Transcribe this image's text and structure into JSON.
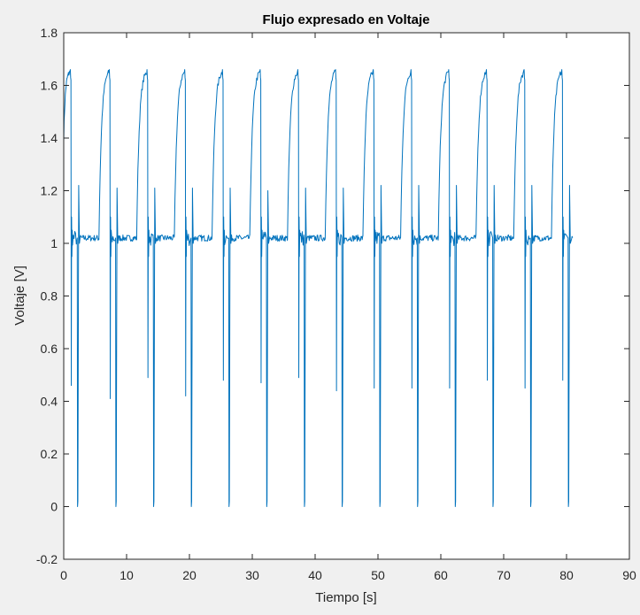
{
  "chart_data": {
    "type": "line",
    "title": "Flujo expresado en Voltaje",
    "xlabel": "Tiempo [s]",
    "ylabel": "Voltaje [V]",
    "xlim": [
      0,
      90
    ],
    "ylim": [
      -0.2,
      1.8
    ],
    "xticks": [
      0,
      10,
      20,
      30,
      40,
      50,
      60,
      70,
      80,
      90
    ],
    "yticks": [
      -0.2,
      0,
      0.2,
      0.4,
      0.6,
      0.8,
      1,
      1.2,
      1.4,
      1.6,
      1.8
    ],
    "xtick_labels": [
      "0",
      "10",
      "20",
      "30",
      "40",
      "50",
      "60",
      "70",
      "80",
      "90"
    ],
    "ytick_labels": [
      "-0.2",
      "0",
      "0.2",
      "0.4",
      "0.6",
      "0.8",
      "1",
      "1.2",
      "1.4",
      "1.6",
      "1.8"
    ],
    "grid": false,
    "series": [
      {
        "color": "#0072bd",
        "baseline": 1.02,
        "peak": 1.65,
        "period": 6,
        "cycles": [
          {
            "rise_start": 0.0,
            "peak_end": 1.0,
            "dip_min": 0.46,
            "spike_max": 1.22,
            "drop_time": 2.2,
            "drop_min": 0.0
          },
          {
            "rise_start": 5.6,
            "peak_end": 7.2,
            "dip_min": 0.41,
            "spike_max": 1.21,
            "drop_time": 8.3,
            "drop_min": 0.0
          },
          {
            "rise_start": 11.6,
            "peak_end": 13.2,
            "dip_min": 0.49,
            "spike_max": 1.21,
            "drop_time": 14.3,
            "drop_min": 0.0
          },
          {
            "rise_start": 17.6,
            "peak_end": 19.2,
            "dip_min": 0.42,
            "spike_max": 1.21,
            "drop_time": 20.3,
            "drop_min": 0.0
          },
          {
            "rise_start": 23.6,
            "peak_end": 25.2,
            "dip_min": 0.48,
            "spike_max": 1.21,
            "drop_time": 26.3,
            "drop_min": 0.0
          },
          {
            "rise_start": 29.6,
            "peak_end": 31.2,
            "dip_min": 0.47,
            "spike_max": 1.2,
            "drop_time": 32.3,
            "drop_min": 0.0
          },
          {
            "rise_start": 35.6,
            "peak_end": 37.2,
            "dip_min": 0.49,
            "spike_max": 1.21,
            "drop_time": 38.3,
            "drop_min": 0.0
          },
          {
            "rise_start": 41.6,
            "peak_end": 43.2,
            "dip_min": 0.44,
            "spike_max": 1.21,
            "drop_time": 44.3,
            "drop_min": 0.0
          },
          {
            "rise_start": 47.6,
            "peak_end": 49.2,
            "dip_min": 0.45,
            "spike_max": 1.22,
            "drop_time": 50.3,
            "drop_min": 0.0
          },
          {
            "rise_start": 53.6,
            "peak_end": 55.2,
            "dip_min": 0.45,
            "spike_max": 1.22,
            "drop_time": 56.3,
            "drop_min": 0.0
          },
          {
            "rise_start": 59.6,
            "peak_end": 61.2,
            "dip_min": 0.45,
            "spike_max": 1.22,
            "drop_time": 62.3,
            "drop_min": 0.0
          },
          {
            "rise_start": 65.6,
            "peak_end": 67.2,
            "dip_min": 0.48,
            "spike_max": 1.22,
            "drop_time": 68.3,
            "drop_min": 0.0
          },
          {
            "rise_start": 71.6,
            "peak_end": 73.2,
            "dip_min": 0.45,
            "spike_max": 1.22,
            "drop_time": 74.3,
            "drop_min": 0.0
          },
          {
            "rise_start": 77.6,
            "peak_end": 79.2,
            "dip_min": 0.48,
            "spike_max": 1.22,
            "drop_time": 80.3,
            "drop_min": 0.0
          }
        ]
      }
    ]
  }
}
